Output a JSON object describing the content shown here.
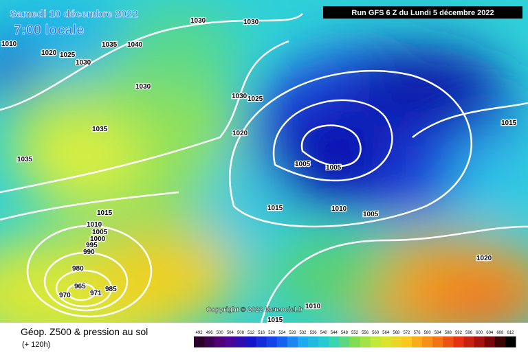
{
  "header": {
    "valid_date": "Samedi 10 décembre 2022",
    "local_time": "7:00 locale",
    "run": "Run GFS 6 Z du Lundi 5 décembre 2022"
  },
  "copyright": "Copyright © 2022 Meteociel.fr",
  "footer": {
    "title": "Géop. Z500 & pression au sol",
    "lead": "(+ 120h)"
  },
  "legend_scale": [
    492,
    496,
    500,
    504,
    508,
    512,
    516,
    520,
    524,
    528,
    532,
    536,
    540,
    544,
    548,
    552,
    556,
    560,
    564,
    568,
    572,
    576,
    580,
    584,
    588,
    592,
    596,
    600,
    604,
    608,
    612
  ],
  "isobar_labels": [
    "1010",
    "1020",
    "1025",
    "1030",
    "1035",
    "1040",
    "1030",
    "1030",
    "1030",
    "1030",
    "1025",
    "1035",
    "1035",
    "1020",
    "1015",
    "1005",
    "1005",
    "1015",
    "1010",
    "1005",
    "1015",
    "1010",
    "1005",
    "1000",
    "995",
    "990",
    "980",
    "985",
    "965",
    "970",
    "971",
    "1020",
    "1010",
    "1015"
  ]
}
